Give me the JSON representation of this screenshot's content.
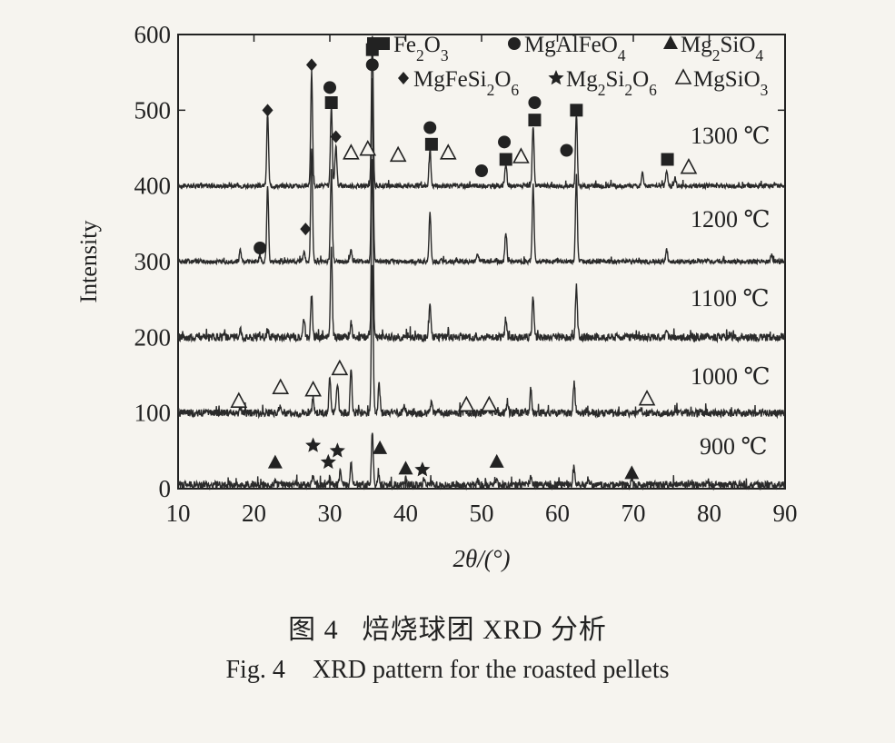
{
  "chart_data": {
    "type": "line",
    "xlabel": "2θ/(°)",
    "ylabel": "Intensity",
    "xlim": [
      10,
      90
    ],
    "ylim": [
      0,
      600
    ],
    "xticks": [
      10,
      20,
      30,
      40,
      50,
      60,
      70,
      80,
      90
    ],
    "yticks": [
      0,
      100,
      200,
      300,
      400,
      500,
      600
    ],
    "legend": {
      "placement": "top-right",
      "entries": [
        {
          "marker": "filled-square",
          "label": "Fe2O3"
        },
        {
          "marker": "filled-circle",
          "label": "MgAlFeO4"
        },
        {
          "marker": "filled-triangle",
          "label": "Mg2SiO4"
        },
        {
          "marker": "filled-diamond",
          "label": "MgFeSi2O6"
        },
        {
          "marker": "filled-star",
          "label": "Mg2Si2O6"
        },
        {
          "marker": "open-triangle",
          "label": "MgSiO3"
        }
      ]
    },
    "series": [
      {
        "name": "1300 ℃",
        "baseline": 400,
        "noise": 3,
        "peaks": [
          [
            21.8,
            95
          ],
          [
            27.6,
            150
          ],
          [
            30.2,
            105
          ],
          [
            30.8,
            55
          ],
          [
            35.6,
            200
          ],
          [
            43.2,
            45
          ],
          [
            53.2,
            30
          ],
          [
            56.8,
            80
          ],
          [
            62.5,
            95
          ],
          [
            71.2,
            20
          ],
          [
            74.4,
            20
          ],
          [
            75.5,
            10
          ]
        ],
        "markers": [
          {
            "symbol": "filled-square",
            "x": 30.2,
            "y": 510
          },
          {
            "symbol": "filled-square",
            "x": 35.6,
            "y": 580
          },
          {
            "symbol": "filled-square",
            "x": 43.4,
            "y": 455
          },
          {
            "symbol": "filled-square",
            "x": 53.2,
            "y": 435
          },
          {
            "symbol": "filled-square",
            "x": 57.0,
            "y": 487
          },
          {
            "symbol": "filled-square",
            "x": 62.5,
            "y": 500
          },
          {
            "symbol": "filled-square",
            "x": 74.5,
            "y": 435
          },
          {
            "symbol": "filled-circle",
            "x": 30.0,
            "y": 530
          },
          {
            "symbol": "filled-circle",
            "x": 35.6,
            "y": 560
          },
          {
            "symbol": "filled-circle",
            "x": 43.2,
            "y": 477
          },
          {
            "symbol": "filled-circle",
            "x": 50.0,
            "y": 420
          },
          {
            "symbol": "filled-circle",
            "x": 53.0,
            "y": 458
          },
          {
            "symbol": "filled-circle",
            "x": 57.0,
            "y": 510
          },
          {
            "symbol": "filled-circle",
            "x": 61.2,
            "y": 447
          },
          {
            "symbol": "filled-diamond",
            "x": 21.8,
            "y": 500
          },
          {
            "symbol": "filled-diamond",
            "x": 27.6,
            "y": 560
          },
          {
            "symbol": "filled-diamond",
            "x": 30.8,
            "y": 465
          },
          {
            "symbol": "open-triangle",
            "x": 32.8,
            "y": 443
          },
          {
            "symbol": "open-triangle",
            "x": 35.0,
            "y": 448
          },
          {
            "symbol": "open-triangle",
            "x": 39.0,
            "y": 440
          },
          {
            "symbol": "open-triangle",
            "x": 45.6,
            "y": 443
          },
          {
            "symbol": "open-triangle",
            "x": 55.2,
            "y": 438
          },
          {
            "symbol": "open-triangle",
            "x": 77.3,
            "y": 424
          }
        ]
      },
      {
        "name": "1200 ℃",
        "baseline": 300,
        "noise": 3,
        "peaks": [
          [
            18.2,
            15
          ],
          [
            20.8,
            8
          ],
          [
            21.8,
            100
          ],
          [
            26.6,
            15
          ],
          [
            27.6,
            150
          ],
          [
            30.2,
            120
          ],
          [
            32.8,
            15
          ],
          [
            35.6,
            240
          ],
          [
            43.2,
            65
          ],
          [
            49.5,
            10
          ],
          [
            53.2,
            40
          ],
          [
            56.8,
            100
          ],
          [
            62.5,
            115
          ],
          [
            74.4,
            15
          ],
          [
            88.2,
            10
          ]
        ],
        "markers": [
          {
            "symbol": "filled-circle",
            "x": 20.8,
            "y": 318
          },
          {
            "symbol": "filled-diamond",
            "x": 26.8,
            "y": 343
          }
        ]
      },
      {
        "name": "1100 ℃",
        "baseline": 200,
        "noise": 5,
        "peaks": [
          [
            18.2,
            12
          ],
          [
            21.8,
            10
          ],
          [
            26.6,
            25
          ],
          [
            27.6,
            55
          ],
          [
            30.2,
            120
          ],
          [
            32.8,
            20
          ],
          [
            35.6,
            240
          ],
          [
            43.2,
            45
          ],
          [
            53.2,
            25
          ],
          [
            56.8,
            55
          ],
          [
            62.5,
            70
          ],
          [
            74.4,
            10
          ]
        ],
        "markers": []
      },
      {
        "name": "1000 ℃",
        "baseline": 100,
        "noise": 5,
        "peaks": [
          [
            18.2,
            8
          ],
          [
            23.5,
            10
          ],
          [
            27.8,
            20
          ],
          [
            30.0,
            45
          ],
          [
            31.0,
            40
          ],
          [
            32.8,
            60
          ],
          [
            35.6,
            200
          ],
          [
            36.5,
            40
          ],
          [
            39.8,
            10
          ],
          [
            43.4,
            15
          ],
          [
            47.8,
            8
          ],
          [
            50.8,
            10
          ],
          [
            53.4,
            15
          ],
          [
            56.5,
            30
          ],
          [
            62.2,
            40
          ],
          [
            71.0,
            6
          ]
        ],
        "markers": [
          {
            "symbol": "open-triangle",
            "x": 18.0,
            "y": 115
          },
          {
            "symbol": "open-triangle",
            "x": 23.5,
            "y": 133
          },
          {
            "symbol": "open-triangle",
            "x": 27.8,
            "y": 130
          },
          {
            "symbol": "open-triangle",
            "x": 31.3,
            "y": 158
          },
          {
            "symbol": "open-triangle",
            "x": 48.0,
            "y": 110
          },
          {
            "symbol": "open-triangle",
            "x": 51.0,
            "y": 110
          },
          {
            "symbol": "open-triangle",
            "x": 71.8,
            "y": 118
          }
        ]
      },
      {
        "name": "900 ℃",
        "baseline": 5,
        "noise": 5,
        "peaks": [
          [
            22.8,
            5
          ],
          [
            27.8,
            12
          ],
          [
            30.0,
            10
          ],
          [
            31.4,
            20
          ],
          [
            32.8,
            30
          ],
          [
            35.6,
            70
          ],
          [
            36.4,
            15
          ],
          [
            40.0,
            8
          ],
          [
            42.4,
            6
          ],
          [
            49.5,
            5
          ],
          [
            52.0,
            8
          ],
          [
            56.5,
            10
          ],
          [
            62.2,
            25
          ],
          [
            64.0,
            8
          ],
          [
            69.8,
            4
          ]
        ],
        "markers": [
          {
            "symbol": "filled-triangle",
            "x": 22.8,
            "y": 34
          },
          {
            "symbol": "filled-triangle",
            "x": 36.6,
            "y": 53
          },
          {
            "symbol": "filled-triangle",
            "x": 40.0,
            "y": 26
          },
          {
            "symbol": "filled-triangle",
            "x": 52.0,
            "y": 35
          },
          {
            "symbol": "filled-triangle",
            "x": 69.8,
            "y": 20
          },
          {
            "symbol": "filled-star",
            "x": 27.8,
            "y": 57
          },
          {
            "symbol": "filled-star",
            "x": 29.8,
            "y": 35
          },
          {
            "symbol": "filled-star",
            "x": 31.0,
            "y": 50
          },
          {
            "symbol": "filled-star",
            "x": 42.2,
            "y": 25
          }
        ]
      }
    ]
  },
  "caption": {
    "cn_fig": "图 4",
    "cn_text": "焙烧球团 XRD 分析",
    "en_fig": "Fig. 4",
    "en_text": "XRD pattern for the roasted pellets"
  }
}
